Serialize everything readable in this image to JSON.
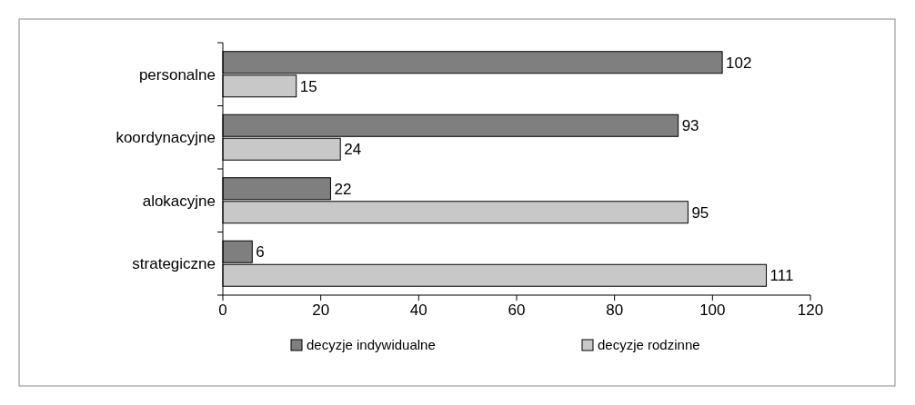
{
  "chart_data": {
    "type": "bar",
    "orientation": "horizontal",
    "categories": [
      "personalne",
      "koordynacyjne",
      "alokacyjne",
      "strategiczne"
    ],
    "series": [
      {
        "name": "decyzje indywidualne",
        "color": "#7f7f7f",
        "values": [
          102,
          93,
          22,
          6
        ]
      },
      {
        "name": "decyzje rodzinne",
        "color": "#c8c8c8",
        "values": [
          15,
          24,
          95,
          111
        ]
      }
    ],
    "xlim": [
      0,
      120
    ],
    "xticks": [
      0,
      20,
      40,
      60,
      80,
      100,
      120
    ],
    "data_labels": true,
    "legend": "bottom",
    "grid": false
  }
}
